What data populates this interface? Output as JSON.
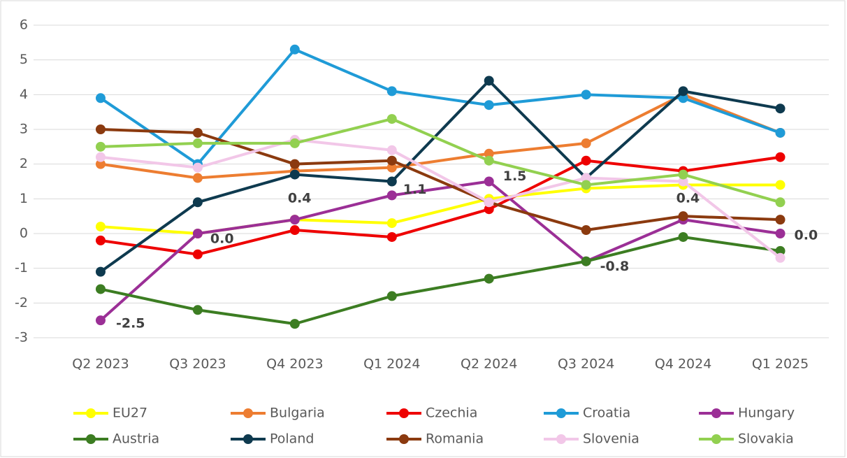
{
  "chart_data": {
    "type": "line",
    "categories": [
      "Q2 2023",
      "Q3 2023",
      "Q4 2023",
      "Q1 2024",
      "Q2 2024",
      "Q3 2024",
      "Q4 2024",
      "Q1 2025"
    ],
    "ylim": [
      -3,
      6
    ],
    "yticks": [
      -3,
      -2,
      -1,
      0,
      1,
      2,
      3,
      4,
      5,
      6
    ],
    "grid": true,
    "series": [
      {
        "name": "EU27",
        "color": "#ffff00",
        "values": [
          0.2,
          0.0,
          0.4,
          0.3,
          1.0,
          1.3,
          1.4,
          1.4
        ]
      },
      {
        "name": "Bulgaria",
        "color": "#ed7d31",
        "values": [
          2.0,
          1.6,
          1.8,
          1.9,
          2.3,
          2.6,
          4.0,
          2.9
        ]
      },
      {
        "name": "Czechia",
        "color": "#ee0000",
        "values": [
          -0.2,
          -0.6,
          0.1,
          -0.1,
          0.7,
          2.1,
          1.8,
          2.2
        ]
      },
      {
        "name": "Croatia",
        "color": "#1f9bd7",
        "values": [
          3.9,
          2.0,
          5.3,
          4.1,
          3.7,
          4.0,
          3.9,
          2.9
        ]
      },
      {
        "name": "Hungary",
        "color": "#9b2f96",
        "values": [
          -2.5,
          0.0,
          0.4,
          1.1,
          1.5,
          -0.8,
          0.4,
          0.0
        ],
        "value_labels": [
          "-2.5",
          "0.0",
          "0.4",
          "1.1",
          "1.5",
          "-0.8",
          "0.4",
          "0.0"
        ]
      },
      {
        "name": "Austria",
        "color": "#3c7d22",
        "values": [
          -1.6,
          -2.2,
          -2.6,
          -1.8,
          -1.3,
          -0.8,
          -0.1,
          -0.5
        ]
      },
      {
        "name": "Poland",
        "color": "#0e3a4f",
        "values": [
          -1.1,
          0.9,
          1.7,
          1.5,
          4.4,
          1.6,
          4.1,
          3.6
        ]
      },
      {
        "name": "Romania",
        "color": "#8b3a0f",
        "values": [
          3.0,
          2.9,
          2.0,
          2.1,
          0.9,
          0.1,
          0.5,
          0.4
        ]
      },
      {
        "name": "Slovenia",
        "color": "#f2c7e8",
        "values": [
          2.2,
          1.9,
          2.7,
          2.4,
          0.9,
          1.6,
          1.5,
          -0.7
        ]
      },
      {
        "name": "Slovakia",
        "color": "#92d050",
        "values": [
          2.5,
          2.6,
          2.6,
          3.3,
          2.1,
          1.4,
          1.7,
          0.9
        ]
      }
    ]
  }
}
